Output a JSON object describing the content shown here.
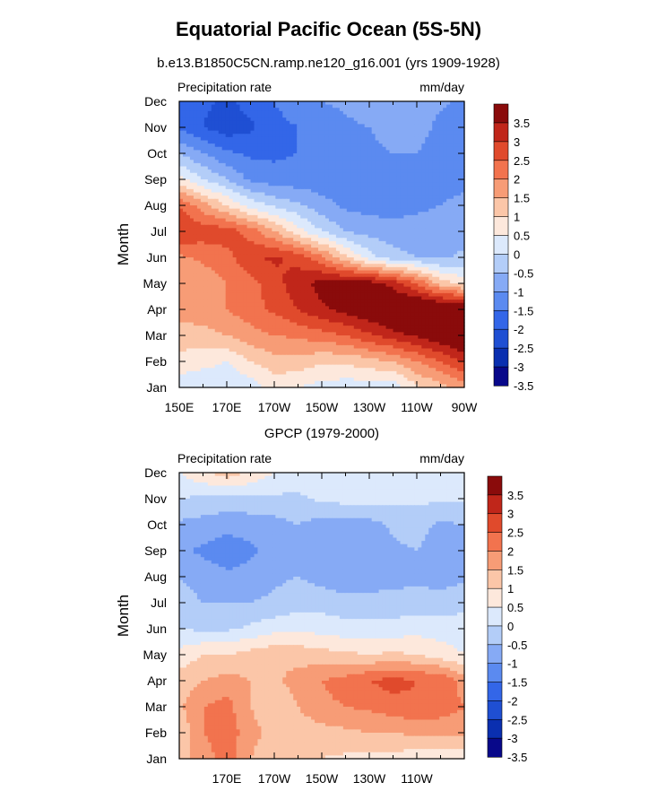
{
  "title": "Equatorial Pacific Ocean (5S-5N)",
  "subtitle": "b.e13.B1850C5CN.ramp.ne120_g16.001 (yrs 1909-1928)",
  "colors": {
    "levels": [
      "#08088a",
      "#0a2fb0",
      "#1f4fd3",
      "#3366e8",
      "#5b8af0",
      "#86aaf5",
      "#b3cdf8",
      "#dce9fc",
      "#fde8dc",
      "#fbc6a8",
      "#f79c76",
      "#f2734e",
      "#e04a2c",
      "#c0261a",
      "#8a0b0b"
    ]
  },
  "chart_data": [
    {
      "type": "heatmap",
      "subtitle": "",
      "left_label": "Precipitation rate",
      "right_label": "mm/day",
      "ylabel": "Month",
      "xlabel": "",
      "x_tick_labels": [
        "150E",
        "170E",
        "170W",
        "150W",
        "130W",
        "110W",
        "90W"
      ],
      "y_tick_labels": [
        "Jan",
        "Feb",
        "Mar",
        "Apr",
        "May",
        "Jun",
        "Jul",
        "Aug",
        "Sep",
        "Oct",
        "Nov",
        "Dec"
      ],
      "colorbar_labels": [
        "3.5",
        "3",
        "2.5",
        "2",
        "1.5",
        "1",
        "0.5",
        "0",
        "-0.5",
        "-1",
        "-1.5",
        "-2",
        "-2.5",
        "-3",
        "-3.5"
      ],
      "x": [
        150,
        160,
        170,
        180,
        190,
        200,
        210,
        220,
        230,
        240,
        250,
        260,
        270
      ],
      "rows": [
        "Jan",
        "Feb",
        "Mar",
        "Apr",
        "May",
        "Jun",
        "Jul",
        "Aug",
        "Sep",
        "Oct",
        "Nov",
        "Dec"
      ],
      "values": [
        [
          -0.3,
          -0.5,
          -0.4,
          -0.3,
          0.2,
          0.0,
          -0.2,
          -0.3,
          -0.3,
          -0.3,
          0.4,
          0.8,
          1.2
        ],
        [
          0.3,
          0.2,
          0.0,
          0.5,
          0.8,
          0.8,
          0.6,
          0.6,
          0.8,
          1.0,
          1.5,
          2.0,
          2.6
        ],
        [
          0.8,
          0.8,
          1.0,
          1.3,
          1.5,
          1.6,
          1.8,
          2.0,
          2.4,
          2.8,
          3.1,
          3.5,
          3.8
        ],
        [
          1.2,
          1.3,
          1.5,
          1.8,
          2.1,
          2.5,
          2.9,
          3.2,
          3.5,
          3.8,
          3.9,
          3.9,
          3.8
        ],
        [
          1.0,
          1.2,
          1.5,
          1.8,
          2.3,
          2.8,
          3.2,
          3.3,
          3.3,
          2.8,
          2.0,
          0.8,
          0.3
        ],
        [
          1.4,
          1.6,
          1.8,
          2.4,
          2.6,
          2.3,
          1.6,
          0.6,
          -0.3,
          -0.8,
          -1.0,
          -1.1,
          -0.9
        ],
        [
          2.5,
          2.3,
          2.3,
          1.8,
          1.0,
          0.2,
          -0.5,
          -1.0,
          -1.2,
          -1.3,
          -1.3,
          -1.3,
          -1.2
        ],
        [
          2.0,
          1.2,
          0.5,
          -0.2,
          -0.6,
          -0.9,
          -1.3,
          -1.6,
          -1.7,
          -1.7,
          -1.6,
          -1.5,
          -1.3
        ],
        [
          0.2,
          -0.5,
          -1.0,
          -1.6,
          -1.8,
          -1.8,
          -1.8,
          -1.8,
          -1.8,
          -1.9,
          -1.9,
          -1.8,
          -1.7
        ],
        [
          -1.0,
          -1.5,
          -1.9,
          -2.1,
          -2.1,
          -2.0,
          -1.8,
          -1.7,
          -1.6,
          -1.5,
          -1.5,
          -1.8,
          -2.0
        ],
        [
          -2.1,
          -2.5,
          -2.8,
          -2.6,
          -2.1,
          -2.0,
          -1.8,
          -1.6,
          -1.5,
          -1.3,
          -1.2,
          -1.7,
          -2.0
        ],
        [
          -2.0,
          -2.4,
          -2.6,
          -2.3,
          -2.0,
          -1.8,
          -1.5,
          -1.4,
          -1.2,
          -1.1,
          -1.1,
          -1.4,
          -1.6
        ]
      ]
    },
    {
      "type": "heatmap",
      "subtitle": "GPCP (1979-2000)",
      "left_label": "Precipitation rate",
      "right_label": "mm/day",
      "ylabel": "Month",
      "xlabel": "",
      "x_tick_labels": [
        "170E",
        "170W",
        "150W",
        "130W",
        "110W"
      ],
      "y_tick_labels": [
        "Jan",
        "Feb",
        "Mar",
        "Apr",
        "May",
        "Jun",
        "Jul",
        "Aug",
        "Sep",
        "Oct",
        "Nov",
        "Dec"
      ],
      "colorbar_labels": [
        "3.5",
        "3",
        "2.5",
        "2",
        "1.5",
        "1",
        "0.5",
        "0",
        "-0.5",
        "-1",
        "-1.5",
        "-2",
        "-2.5",
        "-3",
        "-3.5"
      ],
      "x": [
        150,
        160,
        170,
        180,
        190,
        200,
        210,
        220,
        230,
        240,
        250,
        260,
        270
      ],
      "rows": [
        "Jan",
        "Feb",
        "Mar",
        "Apr",
        "May",
        "Jun",
        "Jul",
        "Aug",
        "Sep",
        "Oct",
        "Nov",
        "Dec"
      ],
      "values": [
        [
          0.8,
          1.2,
          1.8,
          1.0,
          0.6,
          0.5,
          0.5,
          0.4,
          0.3,
          0.3,
          0.2,
          0.2,
          0.1
        ],
        [
          0.6,
          1.5,
          1.8,
          1.2,
          0.8,
          0.7,
          0.8,
          0.9,
          1.0,
          1.0,
          1.1,
          1.1,
          1.2
        ],
        [
          0.9,
          1.5,
          1.7,
          1.0,
          0.6,
          1.0,
          1.4,
          1.5,
          1.6,
          1.8,
          1.9,
          1.8,
          1.5
        ],
        [
          0.7,
          1.0,
          1.2,
          1.0,
          0.9,
          1.2,
          1.5,
          1.7,
          2.0,
          2.2,
          2.0,
          2.0,
          1.2
        ],
        [
          0.2,
          0.5,
          0.5,
          0.7,
          0.9,
          0.8,
          0.7,
          0.6,
          0.5,
          0.6,
          0.5,
          0.2,
          0.0
        ],
        [
          -0.5,
          -0.6,
          -0.6,
          -0.4,
          -0.2,
          -0.1,
          -0.2,
          -0.3,
          -0.3,
          -0.3,
          -0.2,
          -0.2,
          -0.2
        ],
        [
          -0.8,
          -1.0,
          -1.0,
          -1.0,
          -0.9,
          -0.7,
          -0.7,
          -0.8,
          -0.8,
          -0.8,
          -0.8,
          -0.8,
          -0.7
        ],
        [
          -1.0,
          -1.2,
          -1.4,
          -1.3,
          -1.1,
          -1.0,
          -1.2,
          -1.4,
          -1.3,
          -1.2,
          -1.1,
          -1.2,
          -1.1
        ],
        [
          -1.4,
          -1.6,
          -1.8,
          -1.6,
          -1.3,
          -1.1,
          -1.4,
          -1.4,
          -1.3,
          -1.1,
          -1.0,
          -1.3,
          -1.2
        ],
        [
          -1.1,
          -1.2,
          -1.3,
          -1.3,
          -1.2,
          -1.0,
          -1.2,
          -1.3,
          -1.2,
          -0.9,
          -0.8,
          -1.1,
          -1.0
        ],
        [
          -0.5,
          -0.6,
          -0.7,
          -0.6,
          -0.6,
          -0.6,
          -0.4,
          -0.3,
          -0.3,
          -0.4,
          -0.4,
          -0.4,
          -0.4
        ],
        [
          0.0,
          0.4,
          0.8,
          0.4,
          0.0,
          -0.2,
          -0.2,
          -0.2,
          -0.3,
          -0.2,
          -0.3,
          -0.3,
          -0.3
        ]
      ]
    }
  ]
}
